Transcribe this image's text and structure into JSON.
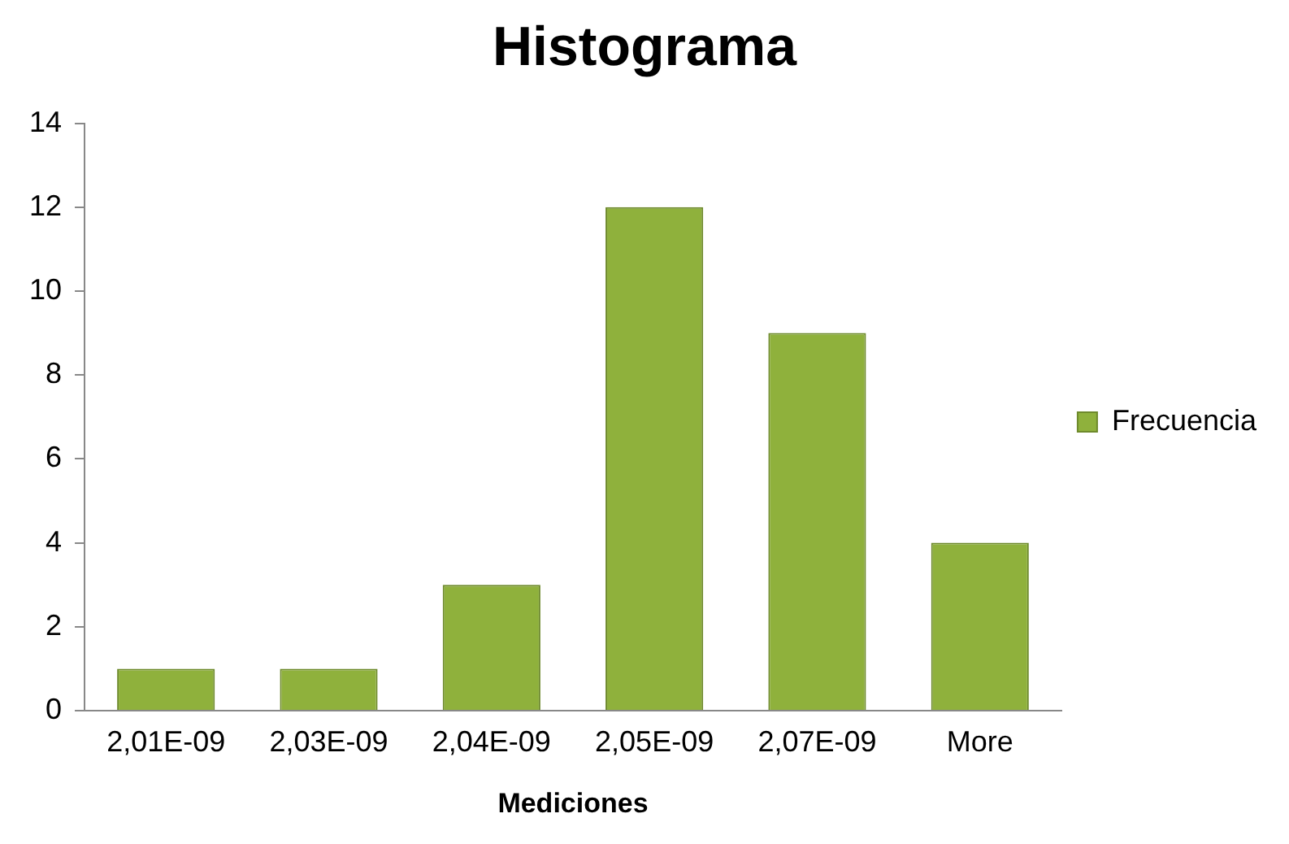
{
  "chart_data": {
    "type": "bar",
    "title": "Histograma",
    "xlabel": "Mediciones",
    "categories": [
      "2,01E-09",
      "2,03E-09",
      "2,04E-09",
      "2,05E-09",
      "2,07E-09",
      "More"
    ],
    "series": [
      {
        "name": "Frecuencia",
        "color": "#8fb13c",
        "values": [
          1,
          1,
          3,
          12,
          9,
          4
        ]
      }
    ],
    "ylim": [
      0,
      14
    ],
    "yticks": [
      0,
      2,
      4,
      6,
      8,
      10,
      12,
      14
    ],
    "grid": false,
    "legend": "right"
  }
}
